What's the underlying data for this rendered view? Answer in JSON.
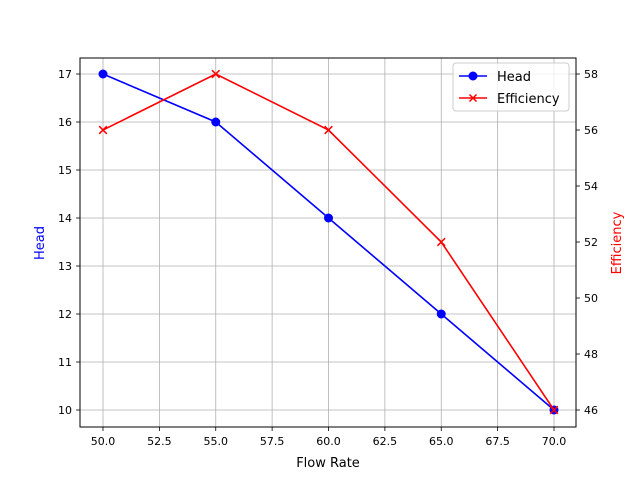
{
  "chart_data": {
    "type": "line",
    "title": "",
    "xlabel": "Flow Rate",
    "ylabel": "Head",
    "ylabel_right": "Efficiency",
    "x": [
      50,
      55,
      60,
      65,
      70
    ],
    "xlim": [
      49,
      71
    ],
    "ylim": [
      9.66,
      17.34
    ],
    "ylim_right": [
      45.4,
      58.6
    ],
    "x_ticks": [
      "50.0",
      "52.5",
      "55.0",
      "57.5",
      "60.0",
      "62.5",
      "65.0",
      "67.5",
      "70.0"
    ],
    "y_ticks": [
      "10",
      "11",
      "12",
      "13",
      "14",
      "15",
      "16",
      "17"
    ],
    "y_ticks_right": [
      "46",
      "48",
      "50",
      "52",
      "54",
      "56",
      "58"
    ],
    "grid": true,
    "legend_position": "upper right",
    "series": [
      {
        "name": "Head",
        "axis": "left",
        "color": "#0000ff",
        "marker": "circle",
        "values": [
          17,
          16,
          14,
          12,
          10
        ]
      },
      {
        "name": "Efficiency",
        "axis": "right",
        "color": "#ff0000",
        "marker": "x",
        "values": [
          56,
          58,
          56,
          52,
          46
        ]
      }
    ]
  },
  "labels": {
    "xlabel": "Flow Rate",
    "ylabel_left": "Head",
    "ylabel_right": "Efficiency",
    "legend": [
      "Head",
      "Efficiency"
    ]
  },
  "colors": {
    "head": "#0000ff",
    "efficiency": "#ff0000",
    "grid": "#b0b0b0",
    "axis": "#000000"
  }
}
